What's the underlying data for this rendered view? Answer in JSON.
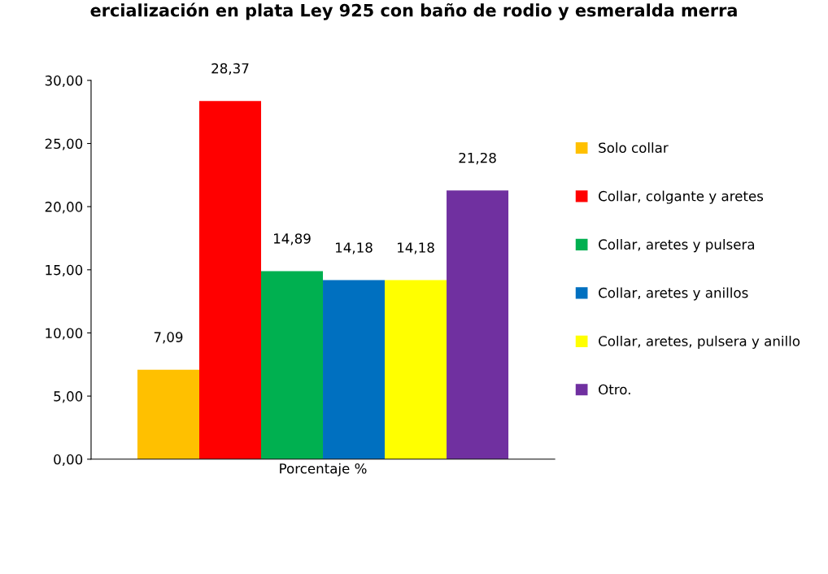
{
  "chart_data": {
    "type": "bar",
    "title": "ercialización en plata Ley 925 con baño de rodio y esmeralda merra",
    "categories": [
      "Porcentaje %"
    ],
    "series": [
      {
        "name": "Solo collar",
        "color": "#ffc000",
        "values": [
          7.09
        ],
        "value_labels": [
          "7,09"
        ]
      },
      {
        "name": "Collar, colgante y aretes",
        "color": "#ff0000",
        "values": [
          28.37
        ],
        "value_labels": [
          "28,37"
        ]
      },
      {
        "name": "Collar, aretes y pulsera",
        "color": "#00b050",
        "values": [
          14.89
        ],
        "value_labels": [
          "14,89"
        ]
      },
      {
        "name": "Collar, aretes y anillos",
        "color": "#0070c0",
        "values": [
          14.18
        ],
        "value_labels": [
          "14,18"
        ]
      },
      {
        "name": "Collar, aretes, pulsera y anillo",
        "color": "#ffff00",
        "values": [
          14.18
        ],
        "value_labels": [
          "14,18"
        ]
      },
      {
        "name": "Otro.",
        "color": "#7030a0",
        "values": [
          21.28
        ],
        "value_labels": [
          "21,28"
        ]
      }
    ],
    "ylim": [
      0,
      30
    ],
    "yticks": [
      {
        "value": 0,
        "label": "0,00"
      },
      {
        "value": 5,
        "label": "5,00"
      },
      {
        "value": 10,
        "label": "10,00"
      },
      {
        "value": 15,
        "label": "15,00"
      },
      {
        "value": 20,
        "label": "20,00"
      },
      {
        "value": 25,
        "label": "25,00"
      },
      {
        "value": 30,
        "label": "30,00"
      }
    ],
    "grid": false,
    "legend": "right"
  }
}
